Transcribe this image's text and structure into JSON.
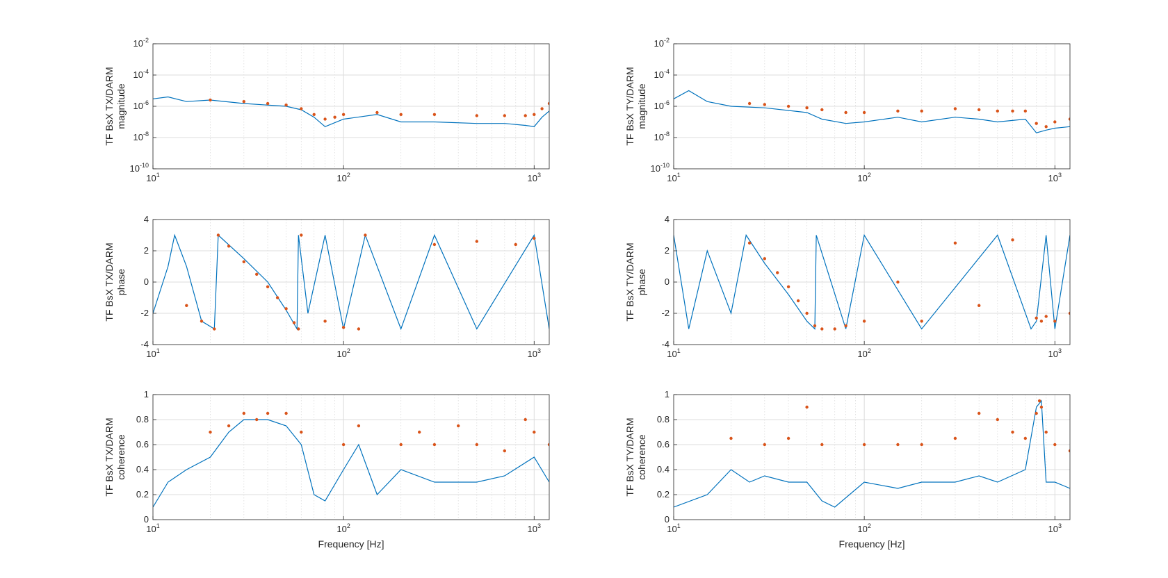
{
  "figure": {
    "background": "#ffffff",
    "colors": {
      "series_line": "#0072bd",
      "series_markers": "#d95319",
      "grid": "#dcdcdc",
      "axes": "#262626"
    }
  },
  "chart_data": [
    {
      "type": "line",
      "id": "tx-magnitude",
      "ylabel_lines": [
        "TF BsX TX/DARM",
        "magnitude"
      ],
      "xlabel": "",
      "xscale": "log",
      "yscale": "log",
      "xlim": [
        10,
        1200
      ],
      "ylim": [
        1e-10,
        0.01
      ],
      "xticks": [
        {
          "base": "10",
          "exp": "1",
          "value": 10
        },
        {
          "base": "10",
          "exp": "2",
          "value": 100
        },
        {
          "base": "10",
          "exp": "3",
          "value": 1000
        }
      ],
      "yticks": [
        {
          "base": "10",
          "exp": "-10",
          "value": 1e-10
        },
        {
          "base": "10",
          "exp": "-8",
          "value": 1e-08
        },
        {
          "base": "10",
          "exp": "-6",
          "value": 1e-06
        },
        {
          "base": "10",
          "exp": "-4",
          "value": 0.0001
        },
        {
          "base": "10",
          "exp": "-2",
          "value": 0.01
        }
      ],
      "grid": true,
      "series": [
        {
          "role": "line",
          "color": "#0072bd",
          "x": [
            10,
            12,
            15,
            20,
            30,
            50,
            60,
            70,
            80,
            100,
            150,
            200,
            300,
            500,
            700,
            900,
            1000,
            1100,
            1200
          ],
          "y": [
            3e-06,
            4e-06,
            2e-06,
            2.5e-06,
            1.5e-06,
            1e-06,
            6e-07,
            2e-07,
            5e-08,
            1.5e-07,
            3e-07,
            1e-07,
            1e-07,
            8e-08,
            8e-08,
            6e-08,
            5e-08,
            2e-07,
            5e-07
          ]
        },
        {
          "role": "markers",
          "color": "#d95319",
          "x": [
            20,
            30,
            40,
            50,
            60,
            70,
            80,
            90,
            100,
            150,
            200,
            300,
            500,
            700,
            900,
            1000,
            1100,
            1200
          ],
          "y": [
            2.5e-06,
            2e-06,
            1.5e-06,
            1.2e-06,
            7e-07,
            3e-07,
            1.5e-07,
            2e-07,
            3e-07,
            4e-07,
            3e-07,
            3e-07,
            2.5e-07,
            2.5e-07,
            2.5e-07,
            3e-07,
            7e-07,
            1.5e-06
          ]
        }
      ]
    },
    {
      "type": "line",
      "id": "ty-magnitude",
      "ylabel_lines": [
        "TF BsX TY/DARM",
        "magnitude"
      ],
      "xlabel": "",
      "xscale": "log",
      "yscale": "log",
      "xlim": [
        10,
        1200
      ],
      "ylim": [
        1e-10,
        0.01
      ],
      "xticks": [
        {
          "base": "10",
          "exp": "1",
          "value": 10
        },
        {
          "base": "10",
          "exp": "2",
          "value": 100
        },
        {
          "base": "10",
          "exp": "3",
          "value": 1000
        }
      ],
      "yticks": [
        {
          "base": "10",
          "exp": "-10",
          "value": 1e-10
        },
        {
          "base": "10",
          "exp": "-8",
          "value": 1e-08
        },
        {
          "base": "10",
          "exp": "-6",
          "value": 1e-06
        },
        {
          "base": "10",
          "exp": "-4",
          "value": 0.0001
        },
        {
          "base": "10",
          "exp": "-2",
          "value": 0.01
        }
      ],
      "grid": true,
      "series": [
        {
          "role": "line",
          "color": "#0072bd",
          "x": [
            10,
            12,
            15,
            20,
            30,
            50,
            60,
            80,
            100,
            150,
            200,
            300,
            400,
            500,
            700,
            800,
            900,
            1000,
            1200
          ],
          "y": [
            3e-06,
            1e-05,
            2e-06,
            1e-06,
            8e-07,
            4e-07,
            1.5e-07,
            8e-08,
            1e-07,
            2e-07,
            1e-07,
            2e-07,
            1.5e-07,
            1e-07,
            1.5e-07,
            2e-08,
            3e-08,
            4e-08,
            5e-08
          ]
        },
        {
          "role": "markers",
          "color": "#d95319",
          "x": [
            25,
            30,
            40,
            50,
            60,
            80,
            100,
            150,
            200,
            300,
            400,
            500,
            600,
            700,
            800,
            900,
            1000,
            1200
          ],
          "y": [
            1.5e-06,
            1.3e-06,
            1e-06,
            8e-07,
            6e-07,
            4e-07,
            4e-07,
            5e-07,
            5e-07,
            7e-07,
            6e-07,
            5e-07,
            5e-07,
            5e-07,
            8e-08,
            5e-08,
            1e-07,
            1.5e-07
          ]
        }
      ]
    },
    {
      "type": "line",
      "id": "tx-phase",
      "ylabel_lines": [
        "TF BsX TX/DARM",
        "phase"
      ],
      "xlabel": "",
      "xscale": "log",
      "yscale": "linear",
      "xlim": [
        10,
        1200
      ],
      "ylim": [
        -4,
        4
      ],
      "xticks": [
        {
          "base": "10",
          "exp": "1",
          "value": 10
        },
        {
          "base": "10",
          "exp": "2",
          "value": 100
        },
        {
          "base": "10",
          "exp": "3",
          "value": 1000
        }
      ],
      "yticks": [
        {
          "label": "-4",
          "value": -4
        },
        {
          "label": "-2",
          "value": -2
        },
        {
          "label": "0",
          "value": 0
        },
        {
          "label": "2",
          "value": 2
        },
        {
          "label": "4",
          "value": 4
        }
      ],
      "grid": true,
      "series": [
        {
          "role": "line",
          "color": "#0072bd",
          "x": [
            10,
            12,
            13,
            15,
            18,
            21,
            22,
            30,
            40,
            50,
            57,
            58,
            65,
            80,
            100,
            130,
            200,
            300,
            500,
            1000,
            1200
          ],
          "y": [
            -2,
            1,
            3,
            1,
            -2.5,
            -3,
            3,
            1.5,
            0,
            -1.8,
            -3,
            3,
            -2,
            3,
            -3,
            3,
            -3,
            3,
            -3,
            3,
            -3
          ]
        },
        {
          "role": "markers",
          "color": "#d95319",
          "x": [
            15,
            18,
            21,
            22,
            25,
            30,
            35,
            40,
            45,
            50,
            55,
            58,
            60,
            80,
            100,
            120,
            130,
            300,
            500,
            800,
            1000
          ],
          "y": [
            -1.5,
            -2.5,
            -3,
            3,
            2.3,
            1.3,
            0.5,
            -0.3,
            -1,
            -1.7,
            -2.6,
            -3,
            3,
            -2.5,
            -2.9,
            -3,
            3,
            2.4,
            2.6,
            2.4,
            2.8
          ]
        }
      ]
    },
    {
      "type": "line",
      "id": "ty-phase",
      "ylabel_lines": [
        "TF BsX TY/DARM",
        "phase"
      ],
      "xlabel": "",
      "xscale": "log",
      "yscale": "linear",
      "xlim": [
        10,
        1200
      ],
      "ylim": [
        -4,
        4
      ],
      "xticks": [
        {
          "base": "10",
          "exp": "1",
          "value": 10
        },
        {
          "base": "10",
          "exp": "2",
          "value": 100
        },
        {
          "base": "10",
          "exp": "3",
          "value": 1000
        }
      ],
      "yticks": [
        {
          "label": "-4",
          "value": -4
        },
        {
          "label": "-2",
          "value": -2
        },
        {
          "label": "0",
          "value": 0
        },
        {
          "label": "2",
          "value": 2
        },
        {
          "label": "4",
          "value": 4
        }
      ],
      "grid": true,
      "series": [
        {
          "role": "line",
          "color": "#0072bd",
          "x": [
            10,
            12,
            15,
            20,
            24,
            30,
            40,
            50,
            55,
            56,
            80,
            100,
            200,
            500,
            750,
            800,
            900,
            1000,
            1200
          ],
          "y": [
            3,
            -3,
            2,
            -2,
            3,
            1.2,
            -0.8,
            -2.5,
            -3,
            3,
            -3,
            3,
            -3,
            3,
            -3,
            -2.5,
            3,
            -3,
            3
          ]
        },
        {
          "role": "markers",
          "color": "#d95319",
          "x": [
            25,
            30,
            35,
            40,
            45,
            50,
            55,
            60,
            70,
            80,
            100,
            150,
            200,
            300,
            400,
            600,
            800,
            850,
            900,
            1000,
            1200
          ],
          "y": [
            2.5,
            1.5,
            0.6,
            -0.3,
            -1.2,
            -2,
            -2.8,
            -3,
            -3,
            -2.8,
            -2.5,
            0,
            -2.5,
            2.5,
            -1.5,
            2.7,
            -2.3,
            -2.5,
            -2.2,
            -2.5,
            -2
          ]
        }
      ]
    },
    {
      "type": "line",
      "id": "tx-coherence",
      "ylabel_lines": [
        "TF BsX TX/DARM",
        "coherence"
      ],
      "xlabel": "Frequency [Hz]",
      "xscale": "log",
      "yscale": "linear",
      "xlim": [
        10,
        1200
      ],
      "ylim": [
        0,
        1
      ],
      "xticks": [
        {
          "base": "10",
          "exp": "1",
          "value": 10
        },
        {
          "base": "10",
          "exp": "2",
          "value": 100
        },
        {
          "base": "10",
          "exp": "3",
          "value": 1000
        }
      ],
      "yticks": [
        {
          "label": "0",
          "value": 0
        },
        {
          "label": "0.2",
          "value": 0.2
        },
        {
          "label": "0.4",
          "value": 0.4
        },
        {
          "label": "0.6",
          "value": 0.6
        },
        {
          "label": "0.8",
          "value": 0.8
        },
        {
          "label": "1",
          "value": 1
        }
      ],
      "grid": true,
      "series": [
        {
          "role": "line",
          "color": "#0072bd",
          "x": [
            10,
            12,
            15,
            20,
            25,
            30,
            40,
            50,
            60,
            70,
            80,
            100,
            120,
            150,
            200,
            300,
            500,
            700,
            1000,
            1200
          ],
          "y": [
            0.1,
            0.3,
            0.4,
            0.5,
            0.7,
            0.8,
            0.8,
            0.75,
            0.6,
            0.2,
            0.15,
            0.4,
            0.6,
            0.2,
            0.4,
            0.3,
            0.3,
            0.35,
            0.5,
            0.3
          ]
        },
        {
          "role": "markers",
          "color": "#d95319",
          "x": [
            20,
            25,
            30,
            35,
            40,
            50,
            60,
            100,
            120,
            200,
            250,
            300,
            400,
            500,
            700,
            900,
            1000,
            1200
          ],
          "y": [
            0.7,
            0.75,
            0.85,
            0.8,
            0.85,
            0.85,
            0.7,
            0.6,
            0.75,
            0.6,
            0.7,
            0.6,
            0.75,
            0.6,
            0.55,
            0.8,
            0.7,
            0.6
          ]
        }
      ]
    },
    {
      "type": "line",
      "id": "ty-coherence",
      "ylabel_lines": [
        "TF BsX TY/DARM",
        "coherence"
      ],
      "xlabel": "Frequency [Hz]",
      "xscale": "log",
      "yscale": "linear",
      "xlim": [
        10,
        1200
      ],
      "ylim": [
        0,
        1
      ],
      "xticks": [
        {
          "base": "10",
          "exp": "1",
          "value": 10
        },
        {
          "base": "10",
          "exp": "2",
          "value": 100
        },
        {
          "base": "10",
          "exp": "3",
          "value": 1000
        }
      ],
      "yticks": [
        {
          "label": "0",
          "value": 0
        },
        {
          "label": "0.2",
          "value": 0.2
        },
        {
          "label": "0.4",
          "value": 0.4
        },
        {
          "label": "0.6",
          "value": 0.6
        },
        {
          "label": "0.8",
          "value": 0.8
        },
        {
          "label": "1",
          "value": 1
        }
      ],
      "grid": true,
      "series": [
        {
          "role": "line",
          "color": "#0072bd",
          "x": [
            10,
            15,
            20,
            25,
            30,
            40,
            50,
            60,
            70,
            100,
            150,
            200,
            300,
            400,
            500,
            700,
            800,
            850,
            900,
            1000,
            1200
          ],
          "y": [
            0.1,
            0.2,
            0.4,
            0.3,
            0.35,
            0.3,
            0.3,
            0.15,
            0.1,
            0.3,
            0.25,
            0.3,
            0.3,
            0.35,
            0.3,
            0.4,
            0.9,
            0.95,
            0.3,
            0.3,
            0.25
          ]
        },
        {
          "role": "markers",
          "color": "#d95319",
          "x": [
            20,
            30,
            40,
            50,
            60,
            100,
            150,
            200,
            300,
            400,
            500,
            600,
            700,
            800,
            830,
            850,
            900,
            1000,
            1200
          ],
          "y": [
            0.65,
            0.6,
            0.65,
            0.9,
            0.6,
            0.6,
            0.6,
            0.6,
            0.65,
            0.85,
            0.8,
            0.7,
            0.65,
            0.85,
            0.95,
            0.9,
            0.7,
            0.6,
            0.55
          ]
        }
      ]
    }
  ]
}
